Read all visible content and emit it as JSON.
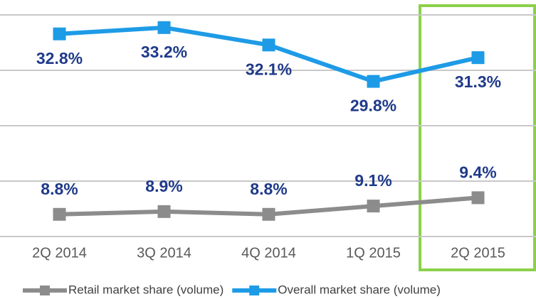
{
  "chart_data": {
    "type": "line",
    "categories": [
      "2Q 2014",
      "3Q 2014",
      "4Q 2014",
      "1Q 2015",
      "2Q 2015"
    ],
    "series": [
      {
        "name": "Retail market share (volume)",
        "color": "#8c8c8c",
        "axis": "y2",
        "values": [
          8.8,
          8.9,
          8.8,
          9.1,
          9.4
        ],
        "value_labels": [
          "8.8%",
          "8.9%",
          "8.8%",
          "9.1%",
          "9.4%"
        ]
      },
      {
        "name": "Overall market share (volume)",
        "color": "#1e9be6",
        "values": [
          32.8,
          33.2,
          32.1,
          29.8,
          31.3
        ],
        "value_labels": [
          "32.8%",
          "33.2%",
          "32.1%",
          "29.8%",
          "31.3%"
        ]
      }
    ],
    "ylim": [
      20,
      34
    ],
    "yticks": [
      20,
      23.5,
      27,
      30.5,
      34
    ],
    "y2lim": [
      8,
      16
    ],
    "y2ticks": [
      8,
      10,
      12,
      14,
      16
    ],
    "grid": true
  }
}
